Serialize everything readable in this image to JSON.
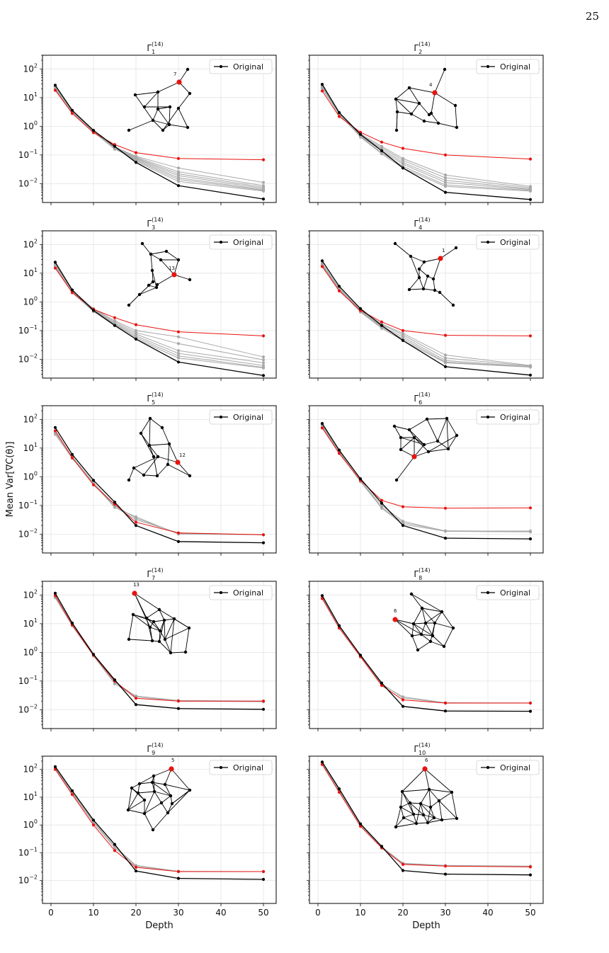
{
  "page": {
    "number": "25",
    "y_axis_label": "Mean Var[∇C(θ)]",
    "x_axis_label": "Depth",
    "legend_label": "Original",
    "title_base": "Γ",
    "title_superscript": "(14)"
  },
  "colors": {
    "original": "#000000",
    "highlight": "#e8130f",
    "others": "#a8a8a8"
  },
  "chart_data": [
    {
      "type": "line",
      "title": "Γ_1^(14)",
      "title_subscript": "1",
      "xlabel": "",
      "ylabel": "",
      "xlim": [
        -2,
        53
      ],
      "ylim": [
        0.0022,
        300
      ],
      "yscale": "log",
      "grid": true,
      "legend": "top-right",
      "x": [
        1,
        5,
        10,
        15,
        20,
        30,
        50
      ],
      "series": [
        {
          "name": "Original",
          "values": [
            27,
            3.6,
            0.72,
            0.2,
            0.055,
            0.0085,
            0.0029
          ]
        },
        {
          "values": [
            18,
            2.8,
            0.6,
            0.23,
            0.12,
            0.075,
            0.068
          ]
        },
        {
          "values": [
            24,
            3.4,
            0.7,
            0.19,
            0.09,
            0.035,
            0.011
          ]
        },
        {
          "values": [
            22,
            3.3,
            0.68,
            0.18,
            0.085,
            0.026,
            0.0085
          ]
        },
        {
          "values": [
            21,
            3.2,
            0.66,
            0.17,
            0.08,
            0.022,
            0.0075
          ]
        },
        {
          "values": [
            20,
            3.1,
            0.64,
            0.17,
            0.075,
            0.019,
            0.0068
          ]
        },
        {
          "values": [
            19,
            3.0,
            0.63,
            0.16,
            0.07,
            0.016,
            0.0062
          ]
        },
        {
          "values": [
            23,
            3.3,
            0.69,
            0.18,
            0.065,
            0.014,
            0.0058
          ]
        },
        {
          "values": [
            25,
            3.5,
            0.7,
            0.19,
            0.06,
            0.012,
            0.0055
          ]
        }
      ],
      "highlighted_node": "7"
    },
    {
      "type": "line",
      "title": "Γ_2^(14)",
      "title_subscript": "2",
      "xlabel": "",
      "ylabel": "",
      "xlim": [
        -2,
        53
      ],
      "ylim": [
        0.0022,
        300
      ],
      "yscale": "log",
      "grid": true,
      "legend": "top-right",
      "x": [
        1,
        5,
        10,
        15,
        20,
        30,
        50
      ],
      "series": [
        {
          "name": "Original",
          "values": [
            29,
            3.0,
            0.52,
            0.14,
            0.035,
            0.005,
            0.0028
          ]
        },
        {
          "values": [
            17,
            2.2,
            0.62,
            0.28,
            0.17,
            0.1,
            0.072
          ]
        },
        {
          "values": [
            26,
            2.9,
            0.55,
            0.2,
            0.075,
            0.02,
            0.008
          ]
        },
        {
          "values": [
            24,
            2.8,
            0.5,
            0.18,
            0.065,
            0.016,
            0.0072
          ]
        },
        {
          "values": [
            23,
            2.7,
            0.48,
            0.16,
            0.055,
            0.013,
            0.0066
          ]
        },
        {
          "values": [
            22,
            2.6,
            0.46,
            0.14,
            0.048,
            0.011,
            0.0062
          ]
        },
        {
          "values": [
            21,
            2.5,
            0.44,
            0.12,
            0.04,
            0.009,
            0.0058
          ]
        },
        {
          "values": [
            25,
            2.8,
            0.42,
            0.11,
            0.035,
            0.008,
            0.0055
          ]
        }
      ],
      "highlighted_node": "4"
    },
    {
      "type": "line",
      "title": "Γ_3^(14)",
      "title_subscript": "3",
      "xlabel": "",
      "ylabel": "",
      "xlim": [
        -2,
        53
      ],
      "ylim": [
        0.0022,
        300
      ],
      "yscale": "log",
      "grid": true,
      "legend": "top-right",
      "x": [
        1,
        5,
        10,
        15,
        20,
        30,
        50
      ],
      "series": [
        {
          "name": "Original",
          "values": [
            24,
            2.6,
            0.5,
            0.15,
            0.05,
            0.008,
            0.0027
          ]
        },
        {
          "values": [
            15,
            2.1,
            0.55,
            0.28,
            0.16,
            0.09,
            0.065
          ]
        },
        {
          "values": [
            22,
            2.5,
            0.58,
            0.22,
            0.1,
            0.06,
            0.012
          ]
        },
        {
          "values": [
            21,
            2.4,
            0.55,
            0.2,
            0.085,
            0.035,
            0.0095
          ]
        },
        {
          "values": [
            20,
            2.3,
            0.52,
            0.18,
            0.075,
            0.02,
            0.0075
          ]
        },
        {
          "values": [
            19,
            2.2,
            0.5,
            0.17,
            0.065,
            0.016,
            0.006
          ]
        },
        {
          "values": [
            18,
            2.2,
            0.48,
            0.16,
            0.058,
            0.013,
            0.0052
          ]
        },
        {
          "values": [
            17,
            2.1,
            0.46,
            0.15,
            0.052,
            0.011,
            0.005
          ]
        }
      ],
      "highlighted_node": "13"
    },
    {
      "type": "line",
      "title": "Γ_4^(14)",
      "title_subscript": "4",
      "xlabel": "",
      "ylabel": "",
      "xlim": [
        -2,
        53
      ],
      "ylim": [
        0.0022,
        300
      ],
      "yscale": "log",
      "grid": true,
      "legend": "top-right",
      "x": [
        1,
        5,
        10,
        15,
        20,
        30,
        50
      ],
      "series": [
        {
          "name": "Original",
          "values": [
            27,
            3.5,
            0.58,
            0.15,
            0.045,
            0.0055,
            0.0028
          ]
        },
        {
          "values": [
            17,
            2.4,
            0.5,
            0.2,
            0.1,
            0.068,
            0.065
          ]
        },
        {
          "values": [
            22,
            3.0,
            0.52,
            0.17,
            0.08,
            0.014,
            0.006
          ]
        },
        {
          "values": [
            21,
            2.9,
            0.5,
            0.16,
            0.07,
            0.011,
            0.0058
          ]
        },
        {
          "values": [
            20,
            2.8,
            0.48,
            0.14,
            0.06,
            0.009,
            0.0055
          ]
        },
        {
          "values": [
            19,
            2.7,
            0.46,
            0.13,
            0.052,
            0.008,
            0.0054
          ]
        },
        {
          "values": [
            18,
            2.6,
            0.44,
            0.12,
            0.045,
            0.0075,
            0.0053
          ]
        }
      ],
      "highlighted_node": "1"
    },
    {
      "type": "line",
      "title": "Γ_5^(14)",
      "title_subscript": "5",
      "xlabel": "",
      "ylabel": "",
      "xlim": [
        -2,
        53
      ],
      "ylim": [
        0.0022,
        300
      ],
      "yscale": "log",
      "grid": true,
      "legend": "top-right",
      "x": [
        1,
        5,
        10,
        15,
        20,
        30,
        50
      ],
      "series": [
        {
          "name": "Original",
          "values": [
            52,
            6.0,
            0.75,
            0.13,
            0.02,
            0.0055,
            0.005
          ]
        },
        {
          "values": [
            40,
            4.6,
            0.52,
            0.11,
            0.026,
            0.011,
            0.0095
          ]
        },
        {
          "values": [
            34,
            4.8,
            0.6,
            0.09,
            0.032,
            0.011,
            0.0095
          ]
        },
        {
          "values": [
            36,
            5.0,
            0.62,
            0.1,
            0.036,
            0.0105,
            0.0095
          ]
        },
        {
          "values": [
            30,
            4.4,
            0.56,
            0.085,
            0.04,
            0.01,
            0.0095
          ]
        }
      ],
      "highlighted_node": "12"
    },
    {
      "type": "line",
      "title": "Γ_6^(14)",
      "title_subscript": "6",
      "xlabel": "",
      "ylabel": "",
      "xlim": [
        -2,
        53
      ],
      "ylim": [
        0.0022,
        300
      ],
      "yscale": "log",
      "grid": true,
      "legend": "top-right",
      "x": [
        1,
        5,
        10,
        15,
        20,
        30,
        50
      ],
      "series": [
        {
          "name": "Original",
          "values": [
            72,
            8.5,
            0.85,
            0.12,
            0.02,
            0.0072,
            0.0068
          ]
        },
        {
          "values": [
            50,
            6.5,
            0.75,
            0.15,
            0.09,
            0.08,
            0.082
          ]
        },
        {
          "values": [
            60,
            7.2,
            0.7,
            0.085,
            0.025,
            0.013,
            0.0125
          ]
        },
        {
          "values": [
            55,
            7.0,
            0.68,
            0.08,
            0.022,
            0.0125,
            0.012
          ]
        },
        {
          "values": [
            65,
            7.6,
            0.72,
            0.1,
            0.028,
            0.0128,
            0.0128
          ]
        }
      ],
      "highlighted_node": ""
    },
    {
      "type": "line",
      "title": "Γ_7^(14)",
      "title_subscript": "7",
      "xlabel": "",
      "ylabel": "",
      "xlim": [
        -2,
        53
      ],
      "ylim": [
        0.0022,
        300
      ],
      "yscale": "log",
      "grid": true,
      "legend": "top-right",
      "x": [
        1,
        5,
        10,
        15,
        20,
        30,
        50
      ],
      "series": [
        {
          "name": "Original",
          "values": [
            115,
            10.5,
            0.85,
            0.11,
            0.015,
            0.011,
            0.0103
          ]
        },
        {
          "values": [
            95,
            9.0,
            0.8,
            0.1,
            0.025,
            0.02,
            0.02
          ]
        },
        {
          "values": [
            80,
            8.5,
            0.75,
            0.08,
            0.028,
            0.02,
            0.019
          ]
        },
        {
          "values": [
            88,
            9.2,
            0.78,
            0.09,
            0.03,
            0.021,
            0.02
          ]
        }
      ],
      "highlighted_node": "13"
    },
    {
      "type": "line",
      "title": "Γ_8^(14)",
      "title_subscript": "8",
      "xlabel": "",
      "ylabel": "",
      "xlim": [
        -2,
        53
      ],
      "ylim": [
        0.0022,
        300
      ],
      "yscale": "log",
      "grid": true,
      "legend": "top-right",
      "x": [
        1,
        5,
        10,
        15,
        20,
        30,
        50
      ],
      "series": [
        {
          "name": "Original",
          "values": [
            95,
            8.5,
            0.8,
            0.085,
            0.013,
            0.009,
            0.0088
          ]
        },
        {
          "values": [
            75,
            7.0,
            0.7,
            0.07,
            0.022,
            0.017,
            0.017
          ]
        },
        {
          "values": [
            85,
            7.8,
            0.75,
            0.08,
            0.026,
            0.017,
            0.017
          ]
        },
        {
          "values": [
            80,
            7.4,
            0.72,
            0.075,
            0.028,
            0.0175,
            0.0172
          ]
        }
      ],
      "highlighted_node": "6"
    },
    {
      "type": "line",
      "title": "Γ_9^(14)",
      "title_subscript": "9",
      "xlabel": "Depth",
      "ylabel": "",
      "xlim": [
        -2,
        53
      ],
      "ylim": [
        0.0015,
        300
      ],
      "yscale": "log",
      "grid": true,
      "legend": "top-right",
      "x": [
        1,
        5,
        10,
        15,
        20,
        30,
        50
      ],
      "series": [
        {
          "name": "Original",
          "values": [
            125,
            17,
            1.5,
            0.2,
            0.022,
            0.012,
            0.011
          ]
        },
        {
          "values": [
            100,
            12.5,
            1.0,
            0.12,
            0.03,
            0.021,
            0.021
          ]
        },
        {
          "values": [
            110,
            14,
            1.2,
            0.15,
            0.033,
            0.021,
            0.021
          ]
        },
        {
          "values": [
            115,
            15,
            1.3,
            0.17,
            0.035,
            0.0215,
            0.021
          ]
        }
      ],
      "highlighted_node": "5"
    },
    {
      "type": "line",
      "title": "Γ_10^(14)",
      "title_subscript": "10",
      "xlabel": "Depth",
      "ylabel": "",
      "xlim": [
        -2,
        53
      ],
      "ylim": [
        0.0015,
        300
      ],
      "yscale": "log",
      "grid": true,
      "legend": "top-right",
      "x": [
        1,
        5,
        10,
        15,
        20,
        30,
        50
      ],
      "series": [
        {
          "name": "Original",
          "values": [
            185,
            20,
            1.1,
            0.17,
            0.023,
            0.017,
            0.016
          ]
        },
        {
          "values": [
            150,
            15,
            0.9,
            0.15,
            0.038,
            0.033,
            0.031
          ]
        },
        {
          "values": [
            165,
            17,
            1.0,
            0.16,
            0.04,
            0.034,
            0.032
          ]
        },
        {
          "values": [
            175,
            18,
            1.05,
            0.165,
            0.042,
            0.035,
            0.033
          ]
        }
      ],
      "highlighted_node": "6"
    }
  ]
}
